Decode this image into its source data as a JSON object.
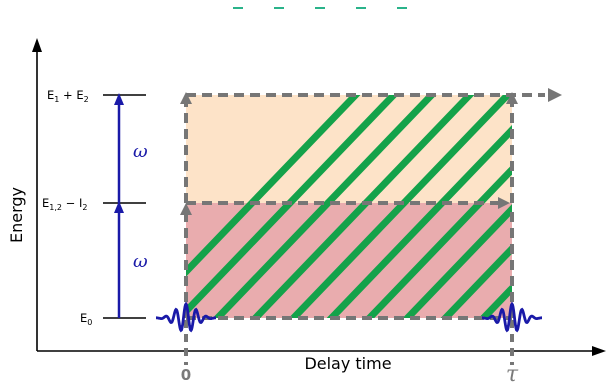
{
  "diagram": {
    "y_axis_label": "Energy",
    "x_axis_label": "Delay time",
    "levels": [
      {
        "id": "E0",
        "base": "E",
        "sub": "0",
        "suffix": "",
        "suffix_sub": ""
      },
      {
        "id": "E12_minus_I2",
        "base": "E",
        "sub": "1,2",
        "suffix": " − I",
        "suffix_sub": "2"
      },
      {
        "id": "E1_plus_E2",
        "base": "E",
        "sub": "1",
        "suffix": " + E",
        "suffix_sub": "2"
      }
    ],
    "transitions": [
      {
        "from": "E0",
        "to": "E12_minus_I2",
        "label": "ω"
      },
      {
        "from": "E12_minus_I2",
        "to": "E1_plus_E2",
        "label": "ω"
      }
    ],
    "delay_ticks": {
      "start": "0",
      "end": "τ"
    },
    "colors": {
      "upper_region": "#fde3c8",
      "lower_region": "#e9acae",
      "hatch": "#14a24a",
      "dashed_border": "#767676",
      "transition_arrow": "#1a1aa8",
      "pulse": "#1a1aa8",
      "axis": "#000000",
      "top_marks": "#2ab38a"
    }
  }
}
